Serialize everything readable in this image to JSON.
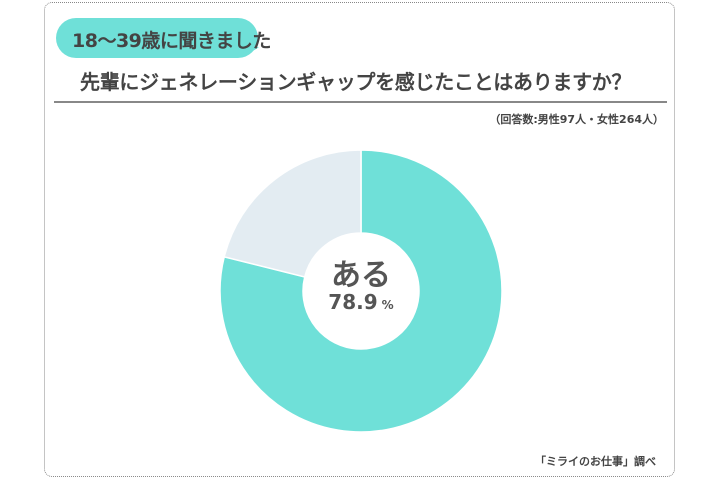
{
  "header": {
    "badge": "18〜39歳に聞きました",
    "title": "先輩にジェネレーションギャップを感じたことはありますか？",
    "respondents": "（回答数:男性97人・女性264人）"
  },
  "credit": "「ミライのお仕事」調べ",
  "chart_data": {
    "type": "pie",
    "variant": "donut",
    "start": "top, clockwise",
    "slices": [
      {
        "label": "ある",
        "value": 78.9,
        "color": "#6fe0d8"
      },
      {
        "value": 21.1,
        "color": "#e3ecf2"
      }
    ],
    "center_label": {
      "text": "ある",
      "value": "78.9",
      "unit": "%"
    }
  }
}
